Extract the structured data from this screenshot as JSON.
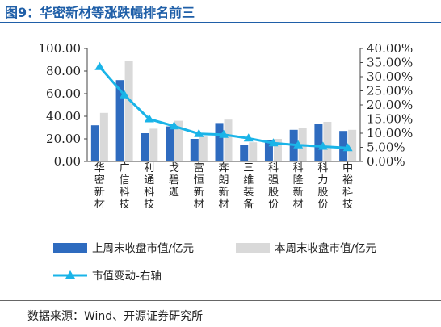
{
  "figure": {
    "title": "图9：华密新材等涨跌幅排名前三",
    "source": "数据来源：Wind、开源证券研究所"
  },
  "chart_data": {
    "type": "bar",
    "categories": [
      "华密新材",
      "广信科技",
      "利通科技",
      "戈碧迦",
      "富恒新材",
      "奔朗新材",
      "三维装备",
      "科强股份",
      "科隆新材",
      "科力股份",
      "中裕科技"
    ],
    "series": [
      {
        "name": "上周末收盘市值/亿元",
        "type": "bar",
        "axis": "left",
        "color": "#2e6bbf",
        "values": [
          32,
          72,
          25,
          31,
          20,
          34,
          15,
          19,
          28,
          33,
          27
        ]
      },
      {
        "name": "本周末收盘市值/亿元",
        "type": "bar",
        "axis": "left",
        "color": "#d9d9d9",
        "values": [
          43,
          89,
          29,
          36,
          22,
          37,
          17,
          20,
          30,
          35,
          28
        ]
      },
      {
        "name": "市值变动-右轴",
        "type": "line",
        "axis": "right",
        "color": "#1ab4e8",
        "marker": "triangle",
        "values": [
          33.5,
          23.5,
          15.0,
          12.5,
          9.8,
          9.5,
          8.2,
          6.5,
          5.8,
          5.3,
          4.8
        ]
      }
    ],
    "y_left": {
      "min": 0,
      "max": 100,
      "step": 20,
      "ticks": [
        "0.00",
        "20.00",
        "40.00",
        "60.00",
        "80.00",
        "100.00"
      ]
    },
    "y_right": {
      "min": 0,
      "max": 40,
      "step": 5,
      "ticks": [
        "0.00%",
        "5.00%",
        "10.00%",
        "15.00%",
        "20.00%",
        "25.00%",
        "30.00%",
        "35.00%",
        "40.00%"
      ]
    },
    "grid": false,
    "legend_position": "bottom"
  }
}
